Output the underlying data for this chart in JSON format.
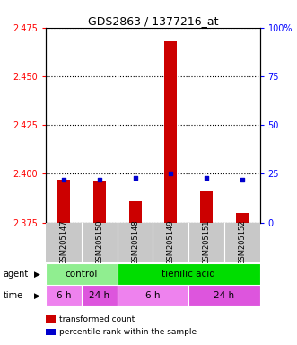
{
  "title": "GDS2863 / 1377216_at",
  "samples": [
    "GSM205147",
    "GSM205150",
    "GSM205148",
    "GSM205149",
    "GSM205151",
    "GSM205152"
  ],
  "transformed_counts": [
    2.397,
    2.396,
    2.386,
    2.468,
    2.391,
    2.38
  ],
  "percentile_ranks": [
    22,
    22,
    23,
    25,
    23,
    22
  ],
  "ylim_left": [
    2.375,
    2.475
  ],
  "ylim_right": [
    0,
    100
  ],
  "yticks_left": [
    2.375,
    2.4,
    2.425,
    2.45,
    2.475
  ],
  "yticks_right": [
    0,
    25,
    50,
    75,
    100
  ],
  "bar_color": "#cc0000",
  "dot_color": "#0000cc",
  "bar_bottom": 2.375,
  "agent_groups": [
    {
      "label": "control",
      "span": [
        0,
        2
      ],
      "color": "#90ee90"
    },
    {
      "label": "tienilic acid",
      "span": [
        2,
        6
      ],
      "color": "#00dd00"
    }
  ],
  "time_groups": [
    {
      "label": "6 h",
      "span": [
        0,
        1
      ],
      "color": "#ee82ee"
    },
    {
      "label": "24 h",
      "span": [
        1,
        2
      ],
      "color": "#dd55dd"
    },
    {
      "label": "6 h",
      "span": [
        2,
        4
      ],
      "color": "#ee82ee"
    },
    {
      "label": "24 h",
      "span": [
        4,
        6
      ],
      "color": "#dd55dd"
    }
  ],
  "legend_items": [
    {
      "color": "#cc0000",
      "label": "transformed count"
    },
    {
      "color": "#0000cc",
      "label": "percentile rank within the sample"
    }
  ],
  "background_color": "#ffffff",
  "sample_area_color": "#c8c8c8"
}
